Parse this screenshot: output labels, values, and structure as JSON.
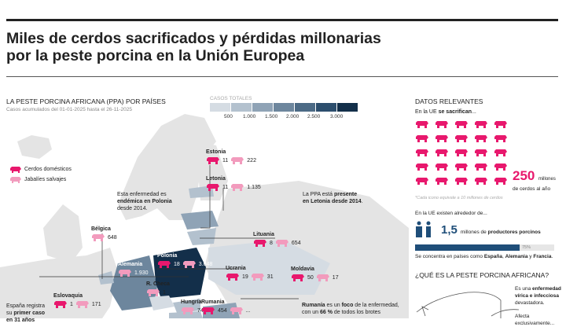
{
  "title": {
    "line1": "Miles de cerdos sacrificados y pérdidas millonarias",
    "line2": "por la peste porcina en la Unión Europea"
  },
  "map": {
    "heading": "LA PESTE PORCINA AFRICANA (PPA) POR PAÍSES",
    "subheading": "Casos acumulados del 01-01-2025 hasta el 26-11-2025",
    "scale": {
      "title": "CASOS TOTALES",
      "ticks": [
        "500",
        "1.000",
        "1.500",
        "2.000",
        "2.500",
        "3.000"
      ],
      "colors": [
        "#d5dce3",
        "#b3c1ce",
        "#8fa3b6",
        "#6d869d",
        "#4c6a85",
        "#2c4e6d",
        "#132f4a"
      ]
    },
    "legend": {
      "domestic": "Cerdos domésticos",
      "wild": "Jabalíes salvajes",
      "domestic_color": "#e8186d",
      "wild_color": "#f29bbd"
    },
    "countries": [
      {
        "name": "Estonia",
        "domestic": "11",
        "wild": "222"
      },
      {
        "name": "Letonia",
        "domestic": "11",
        "wild": "1.135"
      },
      {
        "name": "Lituania",
        "domestic": "8",
        "wild": "654"
      },
      {
        "name": "Bélgica",
        "wild": "648"
      },
      {
        "name": "Polonia",
        "domestic": "18",
        "wild": "3.048"
      },
      {
        "name": "Alemania",
        "wild": "1.930"
      },
      {
        "name": "Ucrania",
        "domestic": "19",
        "wild": "31"
      },
      {
        "name": "Moldavia",
        "domestic": "50",
        "wild": "17"
      },
      {
        "name": "R. Checa",
        "wild": "1"
      },
      {
        "name": "Eslovaquia",
        "domestic": "1",
        "wild": "171"
      },
      {
        "name": "Hungría",
        "wild": "745"
      },
      {
        "name": "Rumania",
        "domestic": "454",
        "wild": "..."
      }
    ],
    "notes": {
      "polonia": [
        "Esta enfermedad es",
        "endémica en Polonia",
        "desde 2014."
      ],
      "letonia": [
        "La PPA está ",
        "presente",
        "en Letonia desde 2014",
        "."
      ],
      "espana": [
        "España registra",
        "su ",
        "primer caso",
        "en 31 años"
      ],
      "rumania": [
        "Rumanía",
        " es un ",
        "foco",
        " de la enfermedad,",
        "con un ",
        "66 %",
        " de todos los brotes"
      ]
    }
  },
  "datos": {
    "heading": "DATOS RELEVANTES",
    "intro1": "En la UE ",
    "intro1b": "se sacrifican",
    "intro1c": "...",
    "big_number": "250",
    "big_unit": "millones",
    "big_desc": "de cerdos al año",
    "footnote": "*Cada icono equivale a 10 millones de cerdos",
    "intro2": "En la UE existen alrededor de...",
    "producers_number": "1,5",
    "producers_text": "millones de ",
    "producers_bold": "productores porcinos",
    "progress": 75,
    "progress_label": "75%",
    "concentra": [
      "Se concentra en países como ",
      "España",
      ", ",
      "Alemania",
      " y ",
      "Francia",
      "."
    ],
    "que_es": "¿QUÉ ES LA PESTE PORCINA AFRICANA?",
    "que_es_text": [
      "Es una ",
      "enfermedad",
      "vírica e infecciosa",
      "devastadora."
    ],
    "afecta": "Afecta exclusivamente..."
  }
}
